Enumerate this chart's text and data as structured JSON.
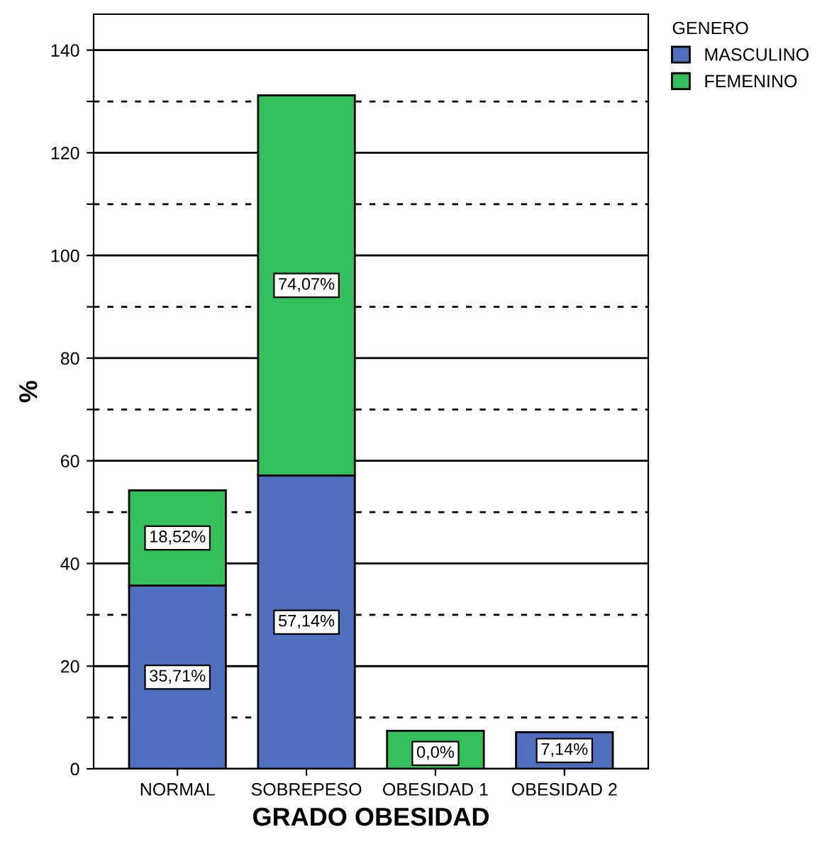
{
  "chart_data": {
    "type": "bar",
    "stacked": true,
    "xlabel": "GRADO OBESIDAD",
    "ylabel": "%",
    "legend_title": "GENERO",
    "legend": "top right",
    "categories": [
      "NORMAL",
      "SOBREPESO",
      "OBESIDAD 1",
      "OBESIDAD 2"
    ],
    "series": [
      {
        "name": "MASCULINO",
        "color": "#4f6fbe",
        "values": [
          35.71,
          57.14,
          0,
          7.14
        ],
        "value_labels": [
          "35,71%",
          "57,14%",
          "0,0%",
          "7,14%"
        ]
      },
      {
        "name": "FEMENINO",
        "color": "#33c05a",
        "values": [
          18.52,
          74.07,
          7.4,
          null
        ],
        "value_labels": [
          "18,52%",
          "74,07%",
          null,
          null
        ]
      }
    ],
    "ylim": [
      0,
      147
    ],
    "yticks": [
      0,
      {
        "value": 10,
        "label": null
      },
      20,
      {
        "value": 30,
        "label": null
      },
      40,
      {
        "value": 50,
        "label": null
      },
      60,
      {
        "value": 70,
        "label": null
      },
      80,
      {
        "value": 90,
        "label": null
      },
      100,
      {
        "value": 110,
        "label": null
      },
      120,
      {
        "value": 130,
        "label": null
      },
      140
    ],
    "grid": "y"
  }
}
